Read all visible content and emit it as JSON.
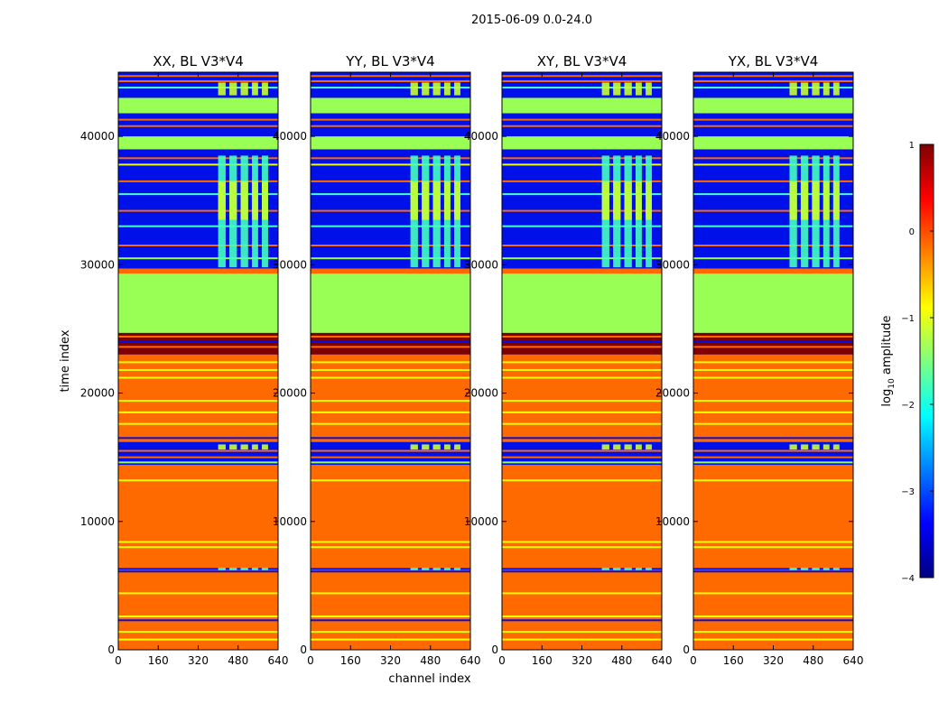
{
  "figure": {
    "suptitle": "2015-06-09 0.0-24.0",
    "xlabel": "channel index",
    "ylabel": "time index"
  },
  "colorbar": {
    "label_prefix": "log",
    "label_sub": "10",
    "label_suffix": " amplitude",
    "range": [
      -4,
      1
    ],
    "ticks": [
      1,
      0,
      -1,
      -2,
      -3,
      -4
    ],
    "tick_labels": [
      "1",
      "0",
      "−1",
      "−2",
      "−3",
      "−4"
    ],
    "colormap": "jet",
    "stops": [
      "#00007f",
      "#0000ff",
      "#007fff",
      "#00ffff",
      "#7fff7f",
      "#ffff00",
      "#ff7f00",
      "#ff0000",
      "#7f0000"
    ]
  },
  "chart_data": {
    "type": "heatmap",
    "panels": [
      {
        "title": "XX, BL V3*V4",
        "yx_variant": false
      },
      {
        "title": "YY, BL V3*V4",
        "yx_variant": false
      },
      {
        "title": "XY, BL V3*V4",
        "yx_variant": false
      },
      {
        "title": "YX, BL V3*V4",
        "yx_variant": true
      }
    ],
    "xlim": [
      0,
      640
    ],
    "ylim": [
      0,
      45000
    ],
    "xticks": [
      0,
      160,
      320,
      480,
      640
    ],
    "yticks": [
      0,
      10000,
      20000,
      30000,
      40000
    ],
    "color_key": {
      "orange": "#ff6a00",
      "green": "#99ff55",
      "blue": "#0010e8",
      "dark_red": "#7f0000",
      "cyan": "#45ffc0",
      "yellow": "#f0ff00",
      "lime": "#c6ff30"
    },
    "background_bands": [
      {
        "y0": 0,
        "y1": 14400,
        "color": "orange"
      },
      {
        "y0": 14400,
        "y1": 16200,
        "color": "blue"
      },
      {
        "y0": 16200,
        "y1": 23000,
        "color": "orange"
      },
      {
        "y0": 23000,
        "y1": 24700,
        "color": "dark_red"
      },
      {
        "y0": 24700,
        "y1": 29300,
        "color": "green"
      },
      {
        "y0": 29300,
        "y1": 29700,
        "color": "orange"
      },
      {
        "y0": 29700,
        "y1": 39000,
        "color": "blue"
      },
      {
        "y0": 39000,
        "y1": 40000,
        "color": "green"
      },
      {
        "y0": 40000,
        "y1": 41800,
        "color": "blue"
      },
      {
        "y0": 41800,
        "y1": 43000,
        "color": "green"
      },
      {
        "y0": 43000,
        "y1": 45000,
        "color": "blue"
      }
    ],
    "horizontal_lines": [
      {
        "y": 800,
        "color": "yellow"
      },
      {
        "y": 1400,
        "color": "yellow"
      },
      {
        "y": 2300,
        "color": "blue"
      },
      {
        "y": 2600,
        "color": "yellow"
      },
      {
        "y": 4400,
        "color": "yellow"
      },
      {
        "y": 6100,
        "color": "blue"
      },
      {
        "y": 6300,
        "color": "blue"
      },
      {
        "y": 8000,
        "color": "yellow"
      },
      {
        "y": 8400,
        "color": "yellow"
      },
      {
        "y": 13200,
        "color": "yellow"
      },
      {
        "y": 14600,
        "color": "green"
      },
      {
        "y": 15000,
        "color": "orange"
      },
      {
        "y": 15500,
        "color": "orange"
      },
      {
        "y": 16500,
        "color": "blue"
      },
      {
        "y": 17600,
        "color": "yellow"
      },
      {
        "y": 18500,
        "color": "yellow"
      },
      {
        "y": 19400,
        "color": "yellow"
      },
      {
        "y": 21200,
        "color": "yellow"
      },
      {
        "y": 21800,
        "color": "yellow"
      },
      {
        "y": 22400,
        "color": "yellow"
      },
      {
        "y": 23600,
        "color": "orange"
      },
      {
        "y": 24000,
        "color": "blue"
      },
      {
        "y": 24400,
        "color": "orange"
      },
      {
        "y": 30500,
        "color": "green"
      },
      {
        "y": 31500,
        "color": "orange"
      },
      {
        "y": 33000,
        "color": "cyan"
      },
      {
        "y": 34200,
        "color": "orange"
      },
      {
        "y": 35500,
        "color": "cyan"
      },
      {
        "y": 36500,
        "color": "orange"
      },
      {
        "y": 37800,
        "color": "yellow"
      },
      {
        "y": 38300,
        "color": "orange"
      },
      {
        "y": 40800,
        "color": "orange"
      },
      {
        "y": 41300,
        "color": "orange"
      },
      {
        "y": 43800,
        "color": "cyan"
      },
      {
        "y": 44300,
        "color": "orange"
      },
      {
        "y": 44700,
        "color": "orange"
      }
    ],
    "rfi_columns": [
      {
        "x0": 400,
        "x1": 430
      },
      {
        "x0": 445,
        "x1": 475
      },
      {
        "x0": 490,
        "x1": 520
      },
      {
        "x0": 535,
        "x1": 560
      },
      {
        "x0": 575,
        "x1": 600
      }
    ],
    "rfi_bands": [
      {
        "y0": 29800,
        "y1": 38500,
        "color": "cyan"
      },
      {
        "y0": 33500,
        "y1": 36500,
        "color": "lime"
      },
      {
        "y0": 43200,
        "y1": 44200,
        "color": "lime"
      },
      {
        "y0": 15600,
        "y1": 16000,
        "color": "lime"
      },
      {
        "y0": 6200,
        "y1": 6400,
        "color": "cyan"
      }
    ]
  }
}
